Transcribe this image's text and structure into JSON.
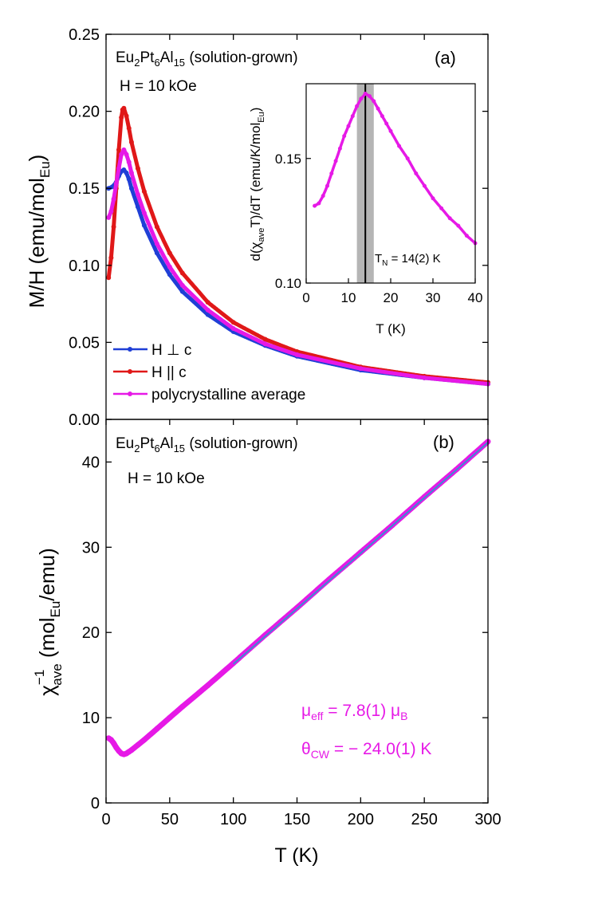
{
  "chart_data": [
    {
      "id": "a",
      "type": "line",
      "panel_label": "(a)",
      "title_sample": {
        "base1": "Eu",
        "sub1": "2",
        "base2": "Pt",
        "sub2": "6",
        "base3": "Al",
        "sub3": "15",
        "suffix": " (solution-grown)"
      },
      "field_label": "H = 10 kOe",
      "ylabel": {
        "base": "M/H (emu/mol",
        "sub": "Eu",
        "close": ")"
      },
      "xlim": [
        0,
        300
      ],
      "ylim": [
        0,
        0.25
      ],
      "yticks": [
        "0.00",
        "0.05",
        "0.10",
        "0.15",
        "0.20",
        "0.25"
      ],
      "yticks_values": [
        0,
        0.05,
        0.1,
        0.15,
        0.2,
        0.25
      ],
      "series": [
        {
          "name": "H ⊥ c",
          "color": "#1f3fd6",
          "x": [
            2,
            5,
            8,
            10,
            12,
            14,
            16,
            18,
            20,
            25,
            30,
            40,
            50,
            60,
            80,
            100,
            125,
            150,
            200,
            250,
            300
          ],
          "y": [
            0.15,
            0.151,
            0.154,
            0.158,
            0.161,
            0.162,
            0.16,
            0.156,
            0.15,
            0.138,
            0.126,
            0.108,
            0.094,
            0.083,
            0.068,
            0.057,
            0.048,
            0.041,
            0.032,
            0.027,
            0.023
          ]
        },
        {
          "name": "H || c",
          "color": "#e01818",
          "x": [
            2,
            4,
            6,
            8,
            10,
            12,
            13,
            14,
            16,
            18,
            20,
            25,
            30,
            40,
            50,
            60,
            80,
            100,
            125,
            150,
            200,
            250,
            300
          ],
          "y": [
            0.092,
            0.105,
            0.125,
            0.15,
            0.175,
            0.196,
            0.201,
            0.202,
            0.197,
            0.189,
            0.18,
            0.163,
            0.148,
            0.125,
            0.108,
            0.095,
            0.076,
            0.063,
            0.052,
            0.044,
            0.034,
            0.028,
            0.024
          ]
        },
        {
          "name": "polycrystalline average",
          "color": "#e619e6",
          "x": [
            2,
            4,
            6,
            8,
            10,
            12,
            14,
            16,
            18,
            20,
            25,
            30,
            40,
            50,
            60,
            80,
            100,
            125,
            150,
            200,
            250,
            300
          ],
          "y": [
            0.131,
            0.135,
            0.143,
            0.153,
            0.163,
            0.172,
            0.175,
            0.172,
            0.167,
            0.16,
            0.146,
            0.134,
            0.114,
            0.099,
            0.087,
            0.071,
            0.059,
            0.049,
            0.042,
            0.033,
            0.027,
            0.023
          ]
        }
      ],
      "legend_position": "bottom-left"
    },
    {
      "id": "inset",
      "type": "scatter",
      "ylabel": {
        "p1": "d(χ",
        "sub1": "ave",
        "p2": "T)/dT (emu/K/mol",
        "sub2": "Eu",
        "p3": ")"
      },
      "xlabel": "T (K)",
      "xlim": [
        0,
        40
      ],
      "ylim": [
        0.1,
        0.18
      ],
      "xticks": [
        "0",
        "10",
        "20",
        "30",
        "40"
      ],
      "xticks_values": [
        0,
        10,
        20,
        30,
        40
      ],
      "yticks": [
        "0.10",
        "0.15"
      ],
      "yticks_values": [
        0.1,
        0.15
      ],
      "color": "#e619e6",
      "x": [
        2,
        3,
        4,
        5,
        6,
        7,
        8,
        9,
        10,
        11,
        12,
        13,
        14,
        15,
        16,
        17,
        18,
        19,
        20,
        22,
        24,
        26,
        28,
        30,
        32,
        34,
        36,
        38,
        40
      ],
      "y": [
        0.131,
        0.132,
        0.135,
        0.139,
        0.144,
        0.149,
        0.154,
        0.159,
        0.163,
        0.167,
        0.171,
        0.174,
        0.176,
        0.175,
        0.173,
        0.17,
        0.167,
        0.164,
        0.161,
        0.155,
        0.15,
        0.144,
        0.139,
        0.134,
        0.13,
        0.126,
        0.123,
        0.119,
        0.116
      ],
      "tn_value": 14,
      "tn_uncertainty": 2,
      "tn_label": {
        "base": "T",
        "sub": "N",
        "rest": " = 14(2) K"
      }
    },
    {
      "id": "b",
      "type": "scatter",
      "panel_label": "(b)",
      "title_sample": {
        "base1": "Eu",
        "sub1": "2",
        "base2": "Pt",
        "sub2": "6",
        "base3": "Al",
        "sub3": "15",
        "suffix": " (solution-grown)"
      },
      "field_label": "H = 10 kOe",
      "ylabel": {
        "chi": "χ",
        "sup": "−1",
        "sub": "ave",
        "p1": " (mol",
        "sub2": "Eu",
        "p2": "/emu)"
      },
      "xlabel": "T (K)",
      "xlim": [
        0,
        300
      ],
      "ylim": [
        0,
        45
      ],
      "xticks": [
        "0",
        "50",
        "100",
        "150",
        "200",
        "250",
        "300"
      ],
      "xticks_values": [
        0,
        50,
        100,
        150,
        200,
        250,
        300
      ],
      "yticks": [
        "0",
        "10",
        "20",
        "30",
        "40"
      ],
      "yticks_values": [
        0,
        10,
        20,
        30,
        40
      ],
      "color": "#e619e6",
      "fit_color": "#3a8fd0",
      "x": [
        2,
        4,
        6,
        8,
        10,
        12,
        14,
        16,
        18,
        20,
        25,
        30,
        40,
        50,
        60,
        80,
        100,
        125,
        150,
        175,
        200,
        225,
        250,
        275,
        300
      ],
      "y": [
        7.6,
        7.4,
        7.0,
        6.5,
        6.1,
        5.8,
        5.7,
        5.8,
        6.0,
        6.2,
        6.8,
        7.4,
        8.7,
        10.0,
        11.3,
        13.8,
        16.4,
        19.7,
        22.9,
        26.2,
        29.4,
        32.6,
        35.9,
        39.1,
        42.4
      ],
      "fit_x": [
        100,
        300
      ],
      "fit_y": [
        16.3,
        42.3
      ],
      "annot_mu": {
        "p1": "μ",
        "sub1": "eff",
        "p2": " = 7.8(1) μ",
        "sub2": "B"
      },
      "annot_theta": {
        "p1": "θ",
        "sub1": "CW",
        "p2": " = − 24.0(1) K"
      }
    }
  ]
}
